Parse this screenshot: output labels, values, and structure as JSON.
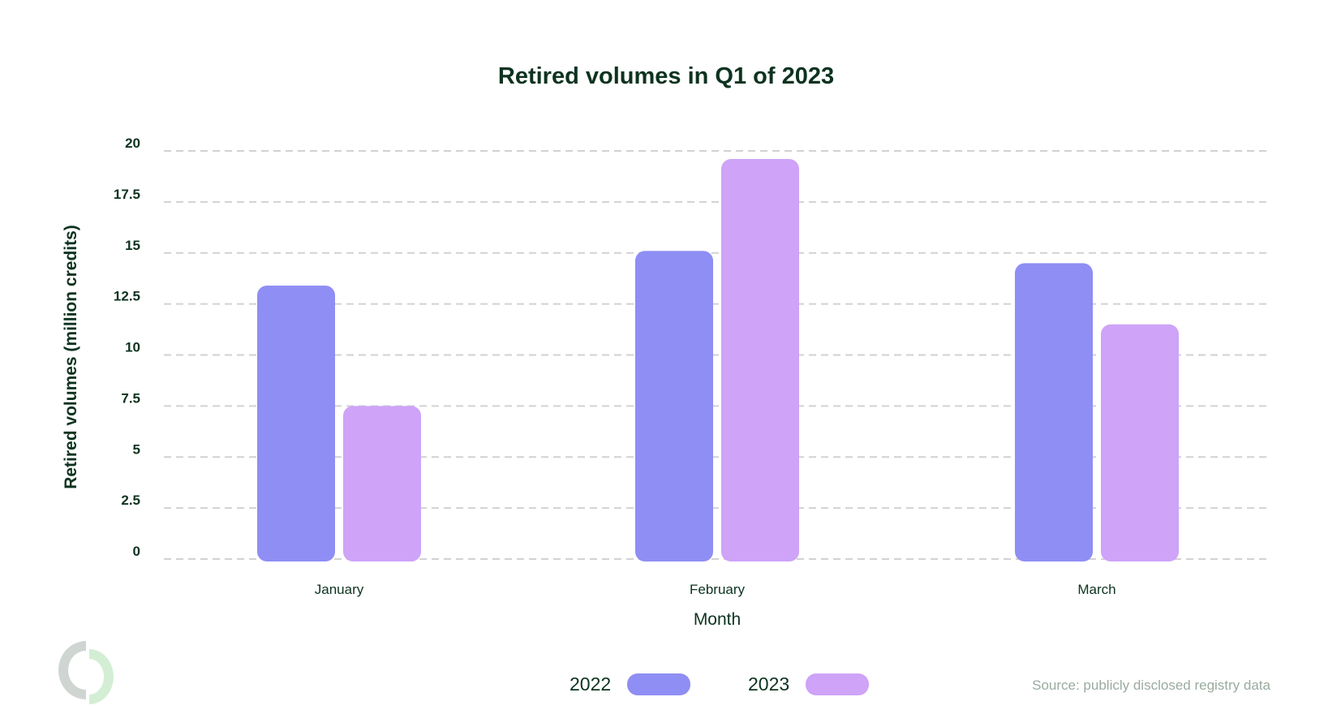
{
  "chart_data": {
    "type": "bar",
    "title": "Retired volumes in Q1 of 2023",
    "xlabel": "Month",
    "ylabel": "Retired volumes (million credits)",
    "categories": [
      "January",
      "February",
      "March"
    ],
    "series": [
      {
        "name": "2022",
        "color": "#8f8ef4",
        "values": [
          13.4,
          15.1,
          14.5
        ]
      },
      {
        "name": "2023",
        "color": "#cea3f8",
        "values": [
          7.5,
          19.6,
          11.5
        ]
      }
    ],
    "ylim": [
      0,
      20
    ],
    "yticks": [
      "0",
      "2.5",
      "5",
      "7.5",
      "10",
      "12.5",
      "15",
      "17.5",
      "20"
    ],
    "grid": true,
    "legend_position": "bottom-center"
  },
  "source": "Source: publicly disclosed registry data"
}
